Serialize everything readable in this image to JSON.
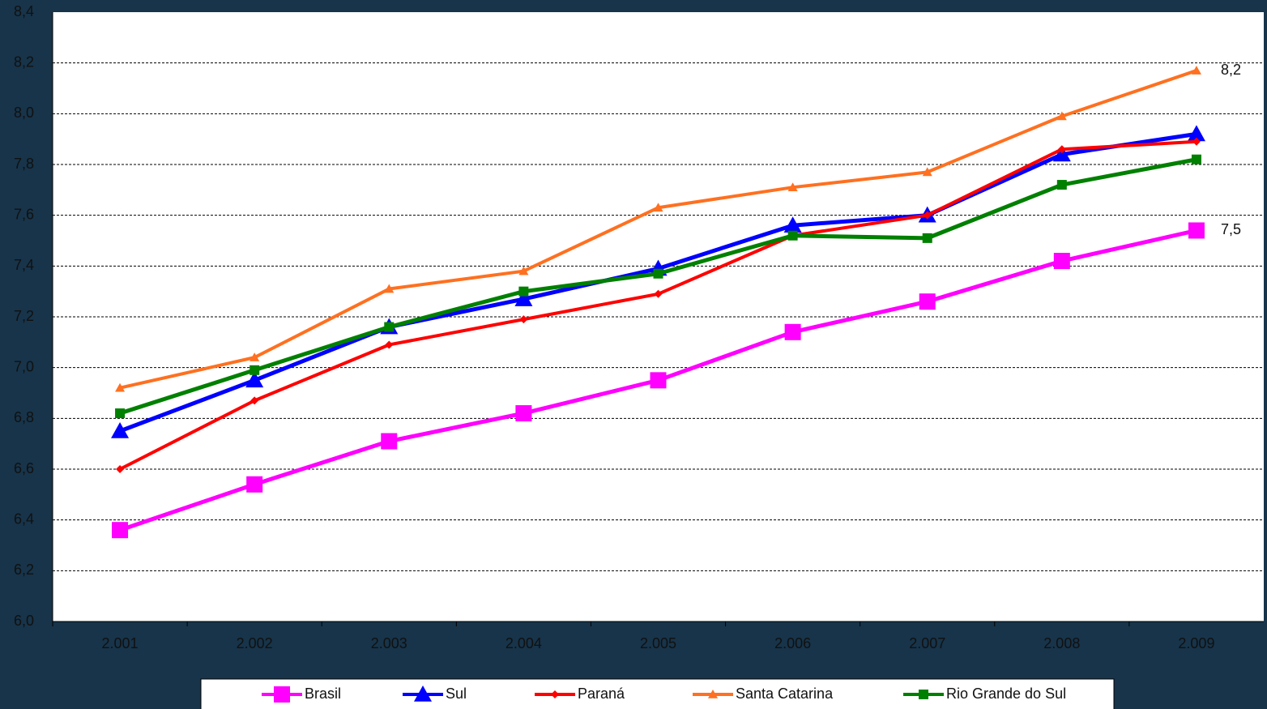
{
  "chart_data": {
    "type": "line",
    "categories": [
      "2.001",
      "2.002",
      "2.003",
      "2.004",
      "2.005",
      "2.006",
      "2.007",
      "2.008",
      "2.009"
    ],
    "series": [
      {
        "name": "Brasil",
        "color": "#ff00ff",
        "marker": "square",
        "values": [
          6.36,
          6.54,
          6.71,
          6.82,
          6.95,
          7.14,
          7.26,
          7.42,
          7.54
        ],
        "value_labels": [
          null,
          null,
          null,
          null,
          null,
          null,
          null,
          null,
          "7,5"
        ]
      },
      {
        "name": "Sul",
        "color": "#0000ff",
        "marker": "triangle",
        "values": [
          6.75,
          6.95,
          7.16,
          7.27,
          7.39,
          7.56,
          7.6,
          7.84,
          7.92
        ]
      },
      {
        "name": "Paraná",
        "color": "#ff0000",
        "marker": "diamond",
        "values": [
          6.6,
          6.87,
          7.09,
          7.19,
          7.29,
          7.52,
          7.6,
          7.86,
          7.89
        ]
      },
      {
        "name": "Santa Catarina",
        "color": "#ff7020",
        "marker": "small-triangle",
        "values": [
          6.92,
          7.04,
          7.31,
          7.38,
          7.63,
          7.71,
          7.77,
          7.99,
          8.17
        ],
        "value_labels": [
          null,
          null,
          null,
          null,
          null,
          null,
          null,
          null,
          "8,2"
        ]
      },
      {
        "name": "Rio Grande do Sul",
        "color": "#008000",
        "marker": "small-square",
        "values": [
          6.82,
          6.99,
          7.16,
          7.3,
          7.37,
          7.52,
          7.51,
          7.72,
          7.82
        ]
      }
    ],
    "ylim": [
      6,
      8.4
    ],
    "yticks": [
      {
        "value": 6,
        "label": "6,0"
      },
      {
        "value": 6.2,
        "label": "6,2"
      },
      {
        "value": 6.4,
        "label": "6,4"
      },
      {
        "value": 6.6,
        "label": "6,6"
      },
      {
        "value": 6.8,
        "label": "6,8"
      },
      {
        "value": 7,
        "label": "7,0"
      },
      {
        "value": 7.2,
        "label": "7,2"
      },
      {
        "value": 7.4,
        "label": "7,4"
      },
      {
        "value": 7.6,
        "label": "7,6"
      },
      {
        "value": 7.8,
        "label": "7,8"
      },
      {
        "value": 8,
        "label": "8,0"
      },
      {
        "value": 8.2,
        "label": "8,2"
      },
      {
        "value": 8.4,
        "label": "8,4"
      }
    ],
    "grid": true,
    "legend": "bottom"
  }
}
